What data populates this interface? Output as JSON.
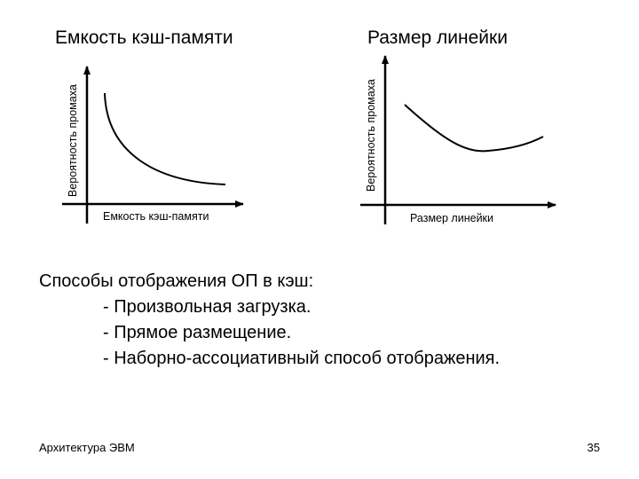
{
  "slide": {
    "left_chart": {
      "title": "Емкость кэш-памяти",
      "ylabel": "Вероятность промаха",
      "xlabel": "Емкость кэш-памяти"
    },
    "right_chart": {
      "title": "Размер линейки",
      "ylabel": "Вероятность промаха",
      "xlabel": "Размер линейки"
    },
    "list": {
      "heading": "Способы отображения ОП в кэш:",
      "items": [
        "- Произвольная загрузка.",
        "- Прямое размещение.",
        "- Наборно-ассоциативный способ отображения."
      ]
    },
    "footer": {
      "left": "Архитектура ЭВМ",
      "page_number": "35"
    }
  }
}
